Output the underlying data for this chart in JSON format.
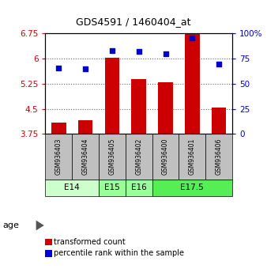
{
  "title": "GDS4591 / 1460404_at",
  "samples": [
    "GSM936403",
    "GSM936404",
    "GSM936405",
    "GSM936402",
    "GSM936400",
    "GSM936401",
    "GSM936406"
  ],
  "bar_values": [
    4.1,
    4.15,
    6.02,
    5.38,
    5.3,
    6.73,
    4.55
  ],
  "dot_values": [
    66,
    65,
    83,
    82,
    80,
    96,
    70
  ],
  "bar_bottom": 3.75,
  "ylim_left": [
    3.75,
    6.75
  ],
  "ylim_right": [
    0,
    100
  ],
  "yticks_left": [
    3.75,
    4.5,
    5.25,
    6.0,
    6.75
  ],
  "yticks_right": [
    0,
    25,
    50,
    75,
    100
  ],
  "ytick_labels_left": [
    "3.75",
    "4.5",
    "5.25",
    "6",
    "6.75"
  ],
  "ytick_labels_right": [
    "0",
    "25",
    "50",
    "75",
    "100%"
  ],
  "bar_color": "#cc0000",
  "dot_color": "#0000cc",
  "groups": [
    {
      "label": "E14",
      "samples": [
        0,
        1
      ],
      "color": "#ccffcc"
    },
    {
      "label": "E15",
      "samples": [
        2
      ],
      "color": "#99ff99"
    },
    {
      "label": "E16",
      "samples": [
        3
      ],
      "color": "#99ff99"
    },
    {
      "label": "E17.5",
      "samples": [
        4,
        5,
        6
      ],
      "color": "#55ee55"
    }
  ],
  "age_label": "age",
  "legend_bar_label": "transformed count",
  "legend_dot_label": "percentile rank within the sample",
  "sample_bg_color": "#c0c0c0",
  "plot_bg_color": "#ffffff",
  "grid_color": "#888888"
}
